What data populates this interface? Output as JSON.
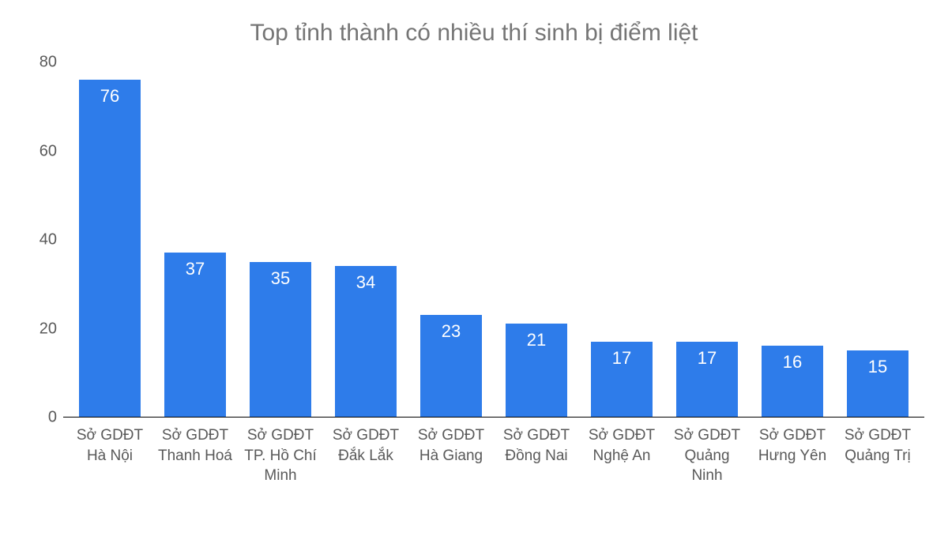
{
  "chart": {
    "type": "bar",
    "title": "Top tỉnh thành có nhiều thí sinh bị điểm liệt",
    "title_fontsize": 30,
    "title_color": "#757575",
    "background_color": "#ffffff",
    "bar_color": "#2e7cea",
    "value_label_color": "#ffffff",
    "value_label_fontsize": 22,
    "axis_label_color": "#595959",
    "axis_label_fontsize": 20,
    "axis_line_color": "#000000",
    "ylim": [
      0,
      80
    ],
    "ytick_step": 20,
    "yticks": [
      0,
      20,
      40,
      60,
      80
    ],
    "bar_width_ratio": 0.72,
    "categories": [
      "Sở GDĐT Hà Nội",
      "Sở GDĐT Thanh Hoá",
      "Sở GDĐT TP. Hồ Chí Minh",
      "Sở GDĐT Đắk Lắk",
      "Sở GDĐT Hà Giang",
      "Sở GDĐT Đồng Nai",
      "Sở GDĐT Nghệ An",
      "Sở GDĐT Quảng Ninh",
      "Sở GDĐT Hưng Yên",
      "Sở GDĐT Quảng Trị"
    ],
    "values": [
      76,
      37,
      35,
      34,
      23,
      21,
      17,
      17,
      16,
      15
    ]
  }
}
